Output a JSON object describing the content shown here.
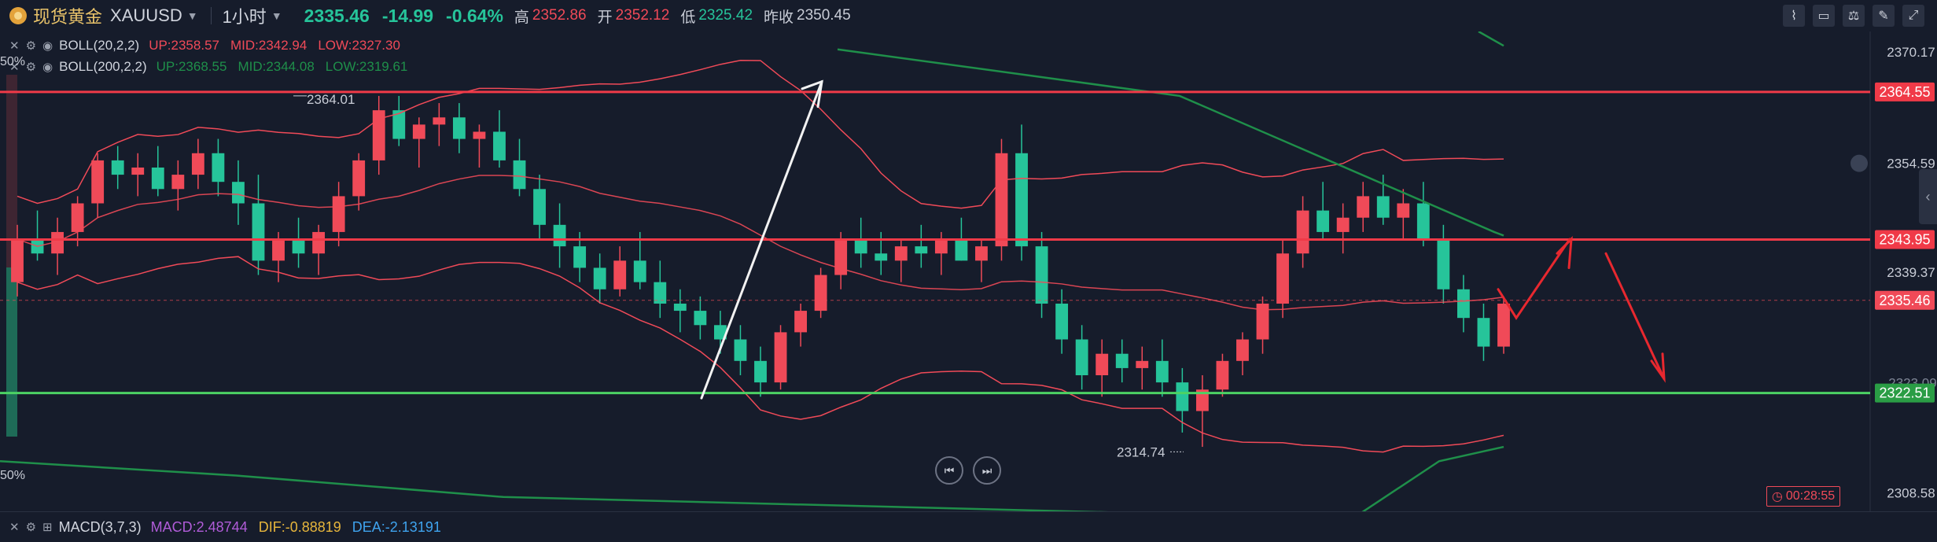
{
  "header": {
    "symbol_name": "现货黄金",
    "symbol_code": "XAUUSD",
    "timeframe": "1小时",
    "last_price": "2335.46",
    "change": "-14.99",
    "change_pct": "-0.64%",
    "high_label": "高",
    "high": "2352.86",
    "open_label": "开",
    "open": "2352.12",
    "low_label": "低",
    "low": "2325.42",
    "prev_close_label": "昨收",
    "prev_close": "2350.45"
  },
  "indicators": {
    "boll20": {
      "name": "BOLL(20,2,2)",
      "up": "UP:2358.57",
      "mid": "MID:2342.94",
      "low": "LOW:2327.30"
    },
    "boll200": {
      "name": "BOLL(200,2,2)",
      "up": "UP:2368.55",
      "mid": "MID:2344.08",
      "low": "LOW:2319.61"
    }
  },
  "macd": {
    "name": "MACD(3,7,3)",
    "macd": "MACD:2.48744",
    "dif": "DIF:-0.88819",
    "dea": "DEA:-2.13191"
  },
  "labels": {
    "pct_top": "50%",
    "pct_bottom": "50%",
    "countdown": "00:28:55"
  },
  "colors": {
    "background": "#161c2b",
    "up_candle": "#f04a58",
    "down_candle": "#26c49a",
    "boll20_line": "#f04a58",
    "boll200_line": "#1f8f4a",
    "resistance_line": "#f03a48",
    "support_line": "#4cd264",
    "current_price_tag": "#f04a58"
  },
  "chart_data": {
    "type": "candlestick",
    "y_range": [
      2306,
      2373
    ],
    "axis_ticks": [
      2370.17,
      2354.59,
      2339.37,
      2308.58
    ],
    "axis_tag_values": [
      {
        "value": 2364.55,
        "color": "#f03a48"
      },
      {
        "value": 2343.95,
        "color": "#f03a48"
      },
      {
        "value": 2335.46,
        "color": "#f04a58"
      },
      {
        "value": 2322.51,
        "color": "#2a9d45"
      }
    ],
    "partially_hidden_tick": "2323.09",
    "horizontal_levels": [
      {
        "value": 2364.55,
        "color": "#f03a48"
      },
      {
        "value": 2343.95,
        "color": "#f03a48"
      },
      {
        "value": 2322.51,
        "color": "#4cd264"
      }
    ],
    "current_price": 2335.46,
    "annotations": [
      {
        "text": "2364.01",
        "value": 2364.01
      },
      {
        "text": "2314.74",
        "value": 2314.74
      }
    ],
    "candles": [
      [
        2338,
        2346,
        2336,
        2344
      ],
      [
        2344,
        2348,
        2341,
        2342
      ],
      [
        2342,
        2347,
        2339,
        2345
      ],
      [
        2345,
        2350,
        2343,
        2349
      ],
      [
        2349,
        2356,
        2347,
        2355
      ],
      [
        2355,
        2357,
        2351,
        2353
      ],
      [
        2353,
        2356,
        2350,
        2354
      ],
      [
        2354,
        2357,
        2350,
        2351
      ],
      [
        2351,
        2355,
        2348,
        2353
      ],
      [
        2353,
        2358,
        2351,
        2356
      ],
      [
        2356,
        2358,
        2350,
        2352
      ],
      [
        2352,
        2355,
        2346,
        2349
      ],
      [
        2349,
        2353,
        2339,
        2341
      ],
      [
        2341,
        2345,
        2338,
        2344
      ],
      [
        2344,
        2347,
        2340,
        2342
      ],
      [
        2342,
        2346,
        2339,
        2345
      ],
      [
        2345,
        2352,
        2343,
        2350
      ],
      [
        2350,
        2356,
        2348,
        2355
      ],
      [
        2355,
        2364,
        2353,
        2362
      ],
      [
        2362,
        2364,
        2357,
        2358
      ],
      [
        2358,
        2361,
        2354,
        2360
      ],
      [
        2360,
        2363,
        2357,
        2361
      ],
      [
        2361,
        2363,
        2356,
        2358
      ],
      [
        2358,
        2360,
        2354,
        2359
      ],
      [
        2359,
        2362,
        2354,
        2355
      ],
      [
        2355,
        2358,
        2350,
        2351
      ],
      [
        2351,
        2353,
        2344,
        2346
      ],
      [
        2346,
        2349,
        2340,
        2343
      ],
      [
        2343,
        2345,
        2338,
        2340
      ],
      [
        2340,
        2342,
        2335,
        2337
      ],
      [
        2337,
        2343,
        2336,
        2341
      ],
      [
        2341,
        2345,
        2337,
        2338
      ],
      [
        2338,
        2341,
        2333,
        2335
      ],
      [
        2335,
        2337,
        2331,
        2334
      ],
      [
        2334,
        2336,
        2330,
        2332
      ],
      [
        2332,
        2334,
        2328,
        2330
      ],
      [
        2330,
        2332,
        2325,
        2327
      ],
      [
        2327,
        2329,
        2322,
        2324
      ],
      [
        2324,
        2332,
        2323,
        2331
      ],
      [
        2331,
        2335,
        2329,
        2334
      ],
      [
        2334,
        2340,
        2333,
        2339
      ],
      [
        2339,
        2345,
        2337,
        2344
      ],
      [
        2344,
        2347,
        2340,
        2342
      ],
      [
        2342,
        2345,
        2339,
        2341
      ],
      [
        2341,
        2344,
        2338,
        2343
      ],
      [
        2343,
        2346,
        2340,
        2342
      ],
      [
        2342,
        2345,
        2339,
        2344
      ],
      [
        2344,
        2347,
        2341,
        2341
      ],
      [
        2341,
        2344,
        2338,
        2343
      ],
      [
        2343,
        2358,
        2341,
        2356
      ],
      [
        2356,
        2360,
        2341,
        2343
      ],
      [
        2343,
        2345,
        2333,
        2335
      ],
      [
        2335,
        2337,
        2328,
        2330
      ],
      [
        2330,
        2332,
        2323,
        2325
      ],
      [
        2325,
        2330,
        2322,
        2328
      ],
      [
        2328,
        2330,
        2324,
        2326
      ],
      [
        2326,
        2329,
        2323,
        2327
      ],
      [
        2327,
        2330,
        2322,
        2324
      ],
      [
        2324,
        2326,
        2317,
        2320
      ],
      [
        2320,
        2325,
        2315,
        2323
      ],
      [
        2323,
        2328,
        2322,
        2327
      ],
      [
        2327,
        2331,
        2325,
        2330
      ],
      [
        2330,
        2336,
        2328,
        2335
      ],
      [
        2335,
        2344,
        2333,
        2342
      ],
      [
        2342,
        2350,
        2340,
        2348
      ],
      [
        2348,
        2352,
        2344,
        2345
      ],
      [
        2345,
        2349,
        2342,
        2347
      ],
      [
        2347,
        2352,
        2345,
        2350
      ],
      [
        2350,
        2353,
        2346,
        2347
      ],
      [
        2347,
        2351,
        2344,
        2349
      ],
      [
        2349,
        2352,
        2343,
        2344
      ],
      [
        2344,
        2346,
        2335,
        2337
      ],
      [
        2337,
        2339,
        2331,
        2333
      ],
      [
        2333,
        2335,
        2327,
        2329
      ],
      [
        2329,
        2336,
        2328,
        2335
      ]
    ]
  }
}
